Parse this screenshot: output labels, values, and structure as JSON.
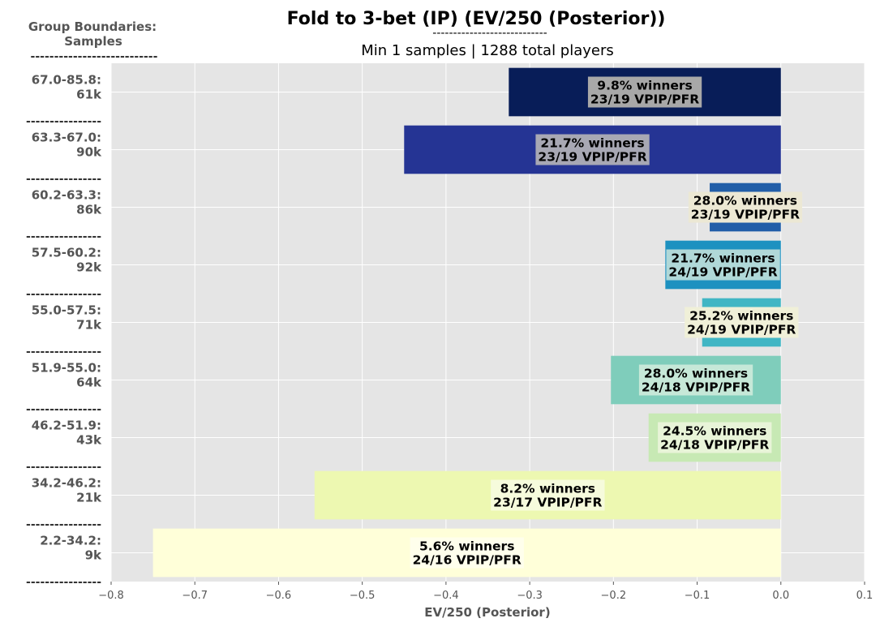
{
  "title": "Fold to 3-bet (IP) (EV/250 (Posterior))",
  "title_separator": "----------------------------",
  "subtitle": "Min 1 samples | 1288 total players",
  "side_header": {
    "line1": "Group Boundaries:",
    "line2": "Samples",
    "separator": "---------------------------"
  },
  "category_separator": "----------------",
  "chart_data": {
    "type": "bar",
    "orientation": "horizontal",
    "title": "Fold to 3-bet (IP) (EV/250 (Posterior))",
    "subtitle": "Min 1 samples | 1288 total players",
    "xlabel": "EV/250 (Posterior)",
    "ylabel": "Group Boundaries: Samples",
    "xlim": [
      -0.8,
      0.1
    ],
    "xticks": [
      -0.8,
      -0.7,
      -0.6,
      -0.5,
      -0.4,
      -0.3,
      -0.2,
      -0.1,
      0.0,
      0.1
    ],
    "xtick_labels": [
      "−0.8",
      "−0.7",
      "−0.6",
      "−0.5",
      "−0.4",
      "−0.3",
      "−0.2",
      "−0.1",
      "0.0",
      "0.1"
    ],
    "grid": true,
    "bars": [
      {
        "range": "67.0-85.8:",
        "samples": "61k",
        "value": -0.325,
        "color": "#081d58",
        "label_bg": "#a8a8a8",
        "winners": "9.8% winners",
        "vpip_pfr": "23/19 VPIP/PFR"
      },
      {
        "range": "63.3-67.0:",
        "samples": "90k",
        "value": -0.45,
        "color": "#253494",
        "label_bg": "#a8a8b4",
        "winners": "21.7% winners",
        "vpip_pfr": "23/19 VPIP/PFR"
      },
      {
        "range": "60.2-63.3:",
        "samples": "86k",
        "value": -0.085,
        "color": "#225ea8",
        "label_bg": "#ece8d4",
        "winners": "28.0% winners",
        "vpip_pfr": "23/19 VPIP/PFR"
      },
      {
        "range": "57.5-60.2:",
        "samples": "92k",
        "value": -0.138,
        "color": "#1d91c0",
        "label_bg": "#b0d8d8",
        "winners": "21.7% winners",
        "vpip_pfr": "24/19 VPIP/PFR"
      },
      {
        "range": "55.0-57.5:",
        "samples": "71k",
        "value": -0.094,
        "color": "#41b6c4",
        "label_bg": "#f0f0d8",
        "winners": "25.2% winners",
        "vpip_pfr": "24/19 VPIP/PFR"
      },
      {
        "range": "51.9-55.0:",
        "samples": "64k",
        "value": -0.203,
        "color": "#7fcdbb",
        "label_bg": "#c6e8d8",
        "winners": "28.0% winners",
        "vpip_pfr": "24/18 VPIP/PFR"
      },
      {
        "range": "46.2-51.9:",
        "samples": "43k",
        "value": -0.158,
        "color": "#c7e9b4",
        "label_bg": "#e8f4d8",
        "winners": "24.5% winners",
        "vpip_pfr": "24/18 VPIP/PFR"
      },
      {
        "range": "34.2-46.2:",
        "samples": "21k",
        "value": -0.557,
        "color": "#edf8b1",
        "label_bg": "#f6fbdc",
        "winners": "8.2% winners",
        "vpip_pfr": "23/17 VPIP/PFR"
      },
      {
        "range": "2.2-34.2:",
        "samples": "9k",
        "value": -0.75,
        "color": "#ffffd9",
        "label_bg": "#ffffec",
        "winners": "5.6% winners",
        "vpip_pfr": "24/16 VPIP/PFR"
      }
    ]
  }
}
